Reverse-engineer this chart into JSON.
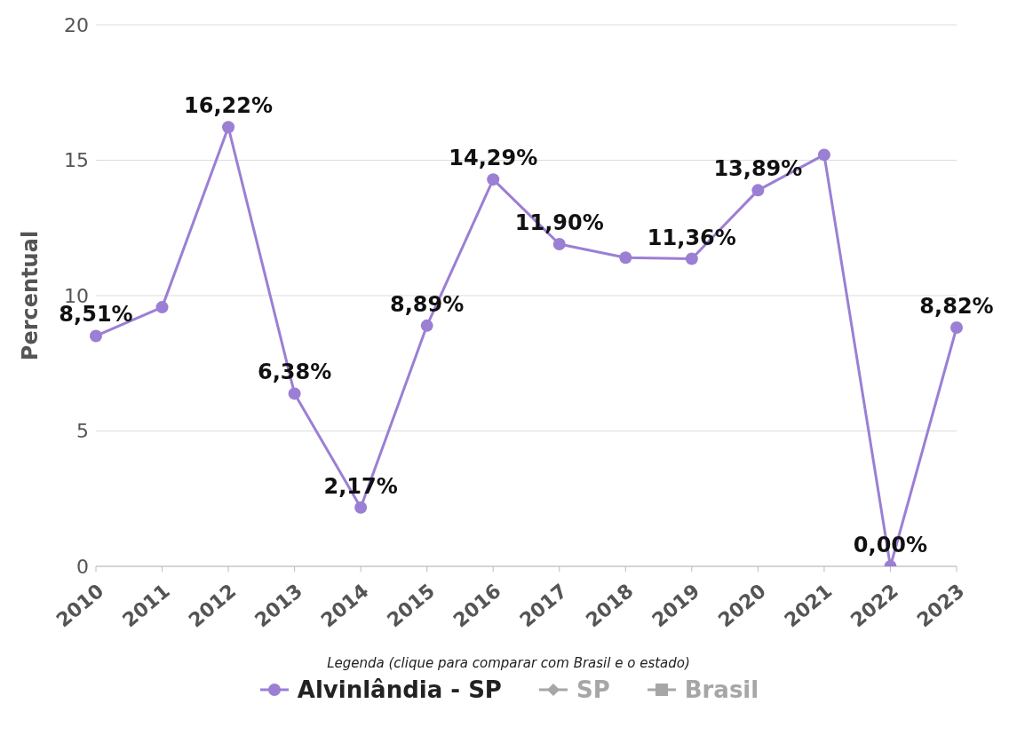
{
  "chart_data": {
    "type": "line",
    "ylabel": "Percentual",
    "legend_title": "Legenda (clique para comparar com Brasil e o estado)",
    "categories": [
      "2010",
      "2011",
      "2012",
      "2013",
      "2014",
      "2015",
      "2016",
      "2017",
      "2018",
      "2019",
      "2020",
      "2021",
      "2022",
      "2023"
    ],
    "series": [
      {
        "name": "Alvinlândia - SP",
        "color": "#9b7fd4",
        "marker": "circle",
        "values": [
          8.51,
          9.57,
          16.22,
          6.38,
          2.17,
          8.89,
          14.29,
          11.9,
          11.4,
          11.36,
          13.89,
          15.2,
          0,
          8.82
        ],
        "value_labels": [
          "8,51%",
          null,
          "16,22%",
          "6,38%",
          "2,17%",
          "8,89%",
          "14,29%",
          "11,90%",
          null,
          "11,36%",
          "13,89%",
          null,
          "0,00%",
          "8,82%"
        ]
      },
      {
        "name": "SP",
        "color": "#a6a6a6",
        "marker": "diamond",
        "values": [
          null,
          null,
          null,
          null,
          null,
          null,
          null,
          null,
          null,
          null,
          null,
          null,
          null,
          null
        ]
      },
      {
        "name": "Brasil",
        "color": "#a6a6a6",
        "marker": "square",
        "values": [
          null,
          null,
          null,
          null,
          null,
          null,
          null,
          null,
          null,
          null,
          null,
          null,
          null,
          null
        ]
      }
    ],
    "ylim": [
      0,
      20
    ],
    "yticks": [
      0,
      5,
      10,
      15,
      20
    ],
    "grid": "y",
    "legend": "bottom",
    "line_style": "solid"
  }
}
